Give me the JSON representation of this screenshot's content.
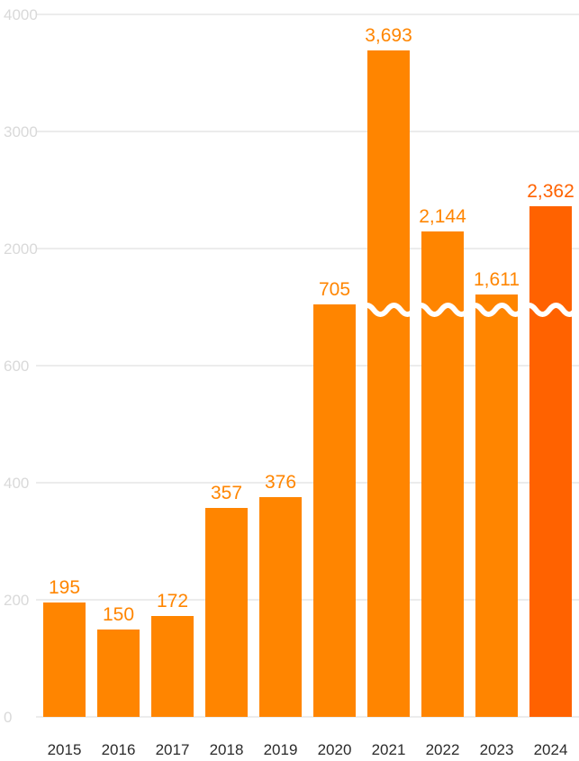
{
  "chart_data": {
    "type": "bar",
    "categories": [
      "2015",
      "2016",
      "2017",
      "2018",
      "2019",
      "2020",
      "2021",
      "2022",
      "2023",
      "2024"
    ],
    "values": [
      195,
      150,
      172,
      357,
      376,
      705,
      3693,
      2144,
      1611,
      2362
    ],
    "value_labels": [
      "195",
      "150",
      "172",
      "357",
      "376",
      "705",
      "3,693",
      "2,144",
      "1,611",
      "2,362"
    ],
    "y_ticks_lower": [
      "0",
      "200",
      "400",
      "600"
    ],
    "y_ticks_upper": [
      "2000",
      "3000",
      "4000"
    ],
    "lower_segment_range": [
      0,
      800
    ],
    "upper_segment_range": [
      1000,
      4000
    ],
    "broken_axis": true,
    "grid": true,
    "colors": {
      "bar": "#ff8500",
      "bar_highlight": "#ff6200",
      "label": "#ff8500",
      "label_highlight": "#ff6200",
      "grid": "#e6e6e6"
    },
    "highlight_index": 9
  }
}
